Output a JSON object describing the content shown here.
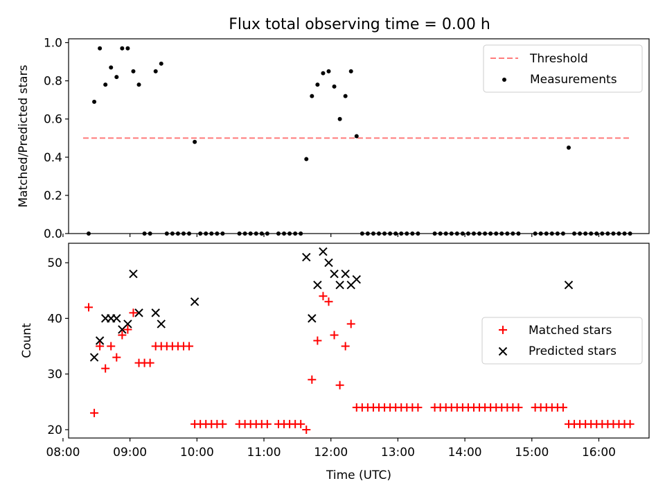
{
  "title": "Flux total observing time = 0.00 h",
  "chart_data": [
    {
      "type": "scatter",
      "title": "Flux total observing time = 0.00 h",
      "ylabel": "Matched/Predicted stars",
      "ylim": [
        0.0,
        1.02
      ],
      "yticks": [
        "0.0",
        "0.2",
        "0.4",
        "0.6",
        "0.8",
        "1.0"
      ],
      "legend_position": "upper right",
      "threshold": {
        "name": "Threshold",
        "value": 0.5,
        "x_range": [
          "08:18",
          "16:27"
        ],
        "color": "#ff7b7b",
        "style": "dashed"
      },
      "series": [
        {
          "name": "Measurements",
          "color": "#000000",
          "marker": "dot",
          "points": [
            [
              "08:23",
              0.0
            ],
            [
              "08:28",
              0.69
            ],
            [
              "08:33",
              0.97
            ],
            [
              "08:38",
              0.78
            ],
            [
              "08:43",
              0.87
            ],
            [
              "08:48",
              0.82
            ],
            [
              "08:53",
              0.97
            ],
            [
              "08:58",
              0.97
            ],
            [
              "09:03",
              0.85
            ],
            [
              "09:08",
              0.78
            ],
            [
              "09:13",
              0.0
            ],
            [
              "09:18",
              0.0
            ],
            [
              "09:23",
              0.85
            ],
            [
              "09:28",
              0.89
            ],
            [
              "09:33",
              0.0
            ],
            [
              "09:38",
              0.0
            ],
            [
              "09:43",
              0.0
            ],
            [
              "09:48",
              0.0
            ],
            [
              "09:53",
              0.0
            ],
            [
              "09:58",
              0.48
            ],
            [
              "10:03",
              0.0
            ],
            [
              "10:08",
              0.0
            ],
            [
              "10:13",
              0.0
            ],
            [
              "10:18",
              0.0
            ],
            [
              "10:23",
              0.0
            ],
            [
              "10:38",
              0.0
            ],
            [
              "10:43",
              0.0
            ],
            [
              "10:48",
              0.0
            ],
            [
              "10:53",
              0.0
            ],
            [
              "10:58",
              0.0
            ],
            [
              "11:03",
              0.0
            ],
            [
              "11:13",
              0.0
            ],
            [
              "11:18",
              0.0
            ],
            [
              "11:23",
              0.0
            ],
            [
              "11:28",
              0.0
            ],
            [
              "11:33",
              0.0
            ],
            [
              "11:38",
              0.39
            ],
            [
              "11:43",
              0.72
            ],
            [
              "11:48",
              0.78
            ],
            [
              "11:53",
              0.84
            ],
            [
              "11:58",
              0.85
            ],
            [
              "12:03",
              0.77
            ],
            [
              "12:08",
              0.6
            ],
            [
              "12:13",
              0.72
            ],
            [
              "12:18",
              0.85
            ],
            [
              "12:23",
              0.51
            ],
            [
              "12:28",
              0.0
            ],
            [
              "12:33",
              0.0
            ],
            [
              "12:38",
              0.0
            ],
            [
              "12:43",
              0.0
            ],
            [
              "12:48",
              0.0
            ],
            [
              "12:53",
              0.0
            ],
            [
              "12:58",
              0.0
            ],
            [
              "13:03",
              0.0
            ],
            [
              "13:08",
              0.0
            ],
            [
              "13:13",
              0.0
            ],
            [
              "13:18",
              0.0
            ],
            [
              "13:33",
              0.0
            ],
            [
              "13:38",
              0.0
            ],
            [
              "13:43",
              0.0
            ],
            [
              "13:48",
              0.0
            ],
            [
              "13:53",
              0.0
            ],
            [
              "13:58",
              0.0
            ],
            [
              "14:03",
              0.0
            ],
            [
              "14:08",
              0.0
            ],
            [
              "14:13",
              0.0
            ],
            [
              "14:18",
              0.0
            ],
            [
              "14:23",
              0.0
            ],
            [
              "14:28",
              0.0
            ],
            [
              "14:33",
              0.0
            ],
            [
              "14:38",
              0.0
            ],
            [
              "14:43",
              0.0
            ],
            [
              "14:48",
              0.0
            ],
            [
              "15:03",
              0.0
            ],
            [
              "15:08",
              0.0
            ],
            [
              "15:13",
              0.0
            ],
            [
              "15:18",
              0.0
            ],
            [
              "15:23",
              0.0
            ],
            [
              "15:28",
              0.0
            ],
            [
              "15:33",
              0.45
            ],
            [
              "15:38",
              0.0
            ],
            [
              "15:43",
              0.0
            ],
            [
              "15:48",
              0.0
            ],
            [
              "15:53",
              0.0
            ],
            [
              "15:58",
              0.0
            ],
            [
              "16:03",
              0.0
            ],
            [
              "16:08",
              0.0
            ],
            [
              "16:13",
              0.0
            ],
            [
              "16:18",
              0.0
            ],
            [
              "16:23",
              0.0
            ],
            [
              "16:28",
              0.0
            ]
          ]
        }
      ]
    },
    {
      "type": "scatter",
      "xlabel": "Time (UTC)",
      "ylabel": "Count",
      "ylim": [
        18.5,
        53.5
      ],
      "yticks": [
        "20",
        "30",
        "40",
        "50"
      ],
      "xlim": [
        "08:05",
        "16:45"
      ],
      "xticks": [
        "08:00",
        "09:00",
        "10:00",
        "11:00",
        "12:00",
        "13:00",
        "14:00",
        "15:00",
        "16:00"
      ],
      "legend_position": "center right",
      "series": [
        {
          "name": "Matched stars",
          "color": "#ff0000",
          "marker": "plus",
          "points": [
            [
              "08:23",
              42
            ],
            [
              "08:28",
              23
            ],
            [
              "08:33",
              35
            ],
            [
              "08:38",
              31
            ],
            [
              "08:43",
              35
            ],
            [
              "08:48",
              33
            ],
            [
              "08:53",
              37
            ],
            [
              "08:58",
              38
            ],
            [
              "09:03",
              41
            ],
            [
              "09:08",
              32
            ],
            [
              "09:13",
              32
            ],
            [
              "09:18",
              32
            ],
            [
              "09:23",
              35
            ],
            [
              "09:28",
              35
            ],
            [
              "09:33",
              35
            ],
            [
              "09:38",
              35
            ],
            [
              "09:43",
              35
            ],
            [
              "09:48",
              35
            ],
            [
              "09:53",
              35
            ],
            [
              "09:58",
              21
            ],
            [
              "10:03",
              21
            ],
            [
              "10:08",
              21
            ],
            [
              "10:13",
              21
            ],
            [
              "10:18",
              21
            ],
            [
              "10:23",
              21
            ],
            [
              "10:38",
              21
            ],
            [
              "10:43",
              21
            ],
            [
              "10:48",
              21
            ],
            [
              "10:53",
              21
            ],
            [
              "10:58",
              21
            ],
            [
              "11:03",
              21
            ],
            [
              "11:13",
              21
            ],
            [
              "11:18",
              21
            ],
            [
              "11:23",
              21
            ],
            [
              "11:28",
              21
            ],
            [
              "11:33",
              21
            ],
            [
              "11:38",
              20
            ],
            [
              "11:43",
              29
            ],
            [
              "11:48",
              36
            ],
            [
              "11:53",
              44
            ],
            [
              "11:58",
              43
            ],
            [
              "12:03",
              37
            ],
            [
              "12:08",
              28
            ],
            [
              "12:13",
              35
            ],
            [
              "12:18",
              39
            ],
            [
              "12:23",
              24
            ],
            [
              "12:28",
              24
            ],
            [
              "12:33",
              24
            ],
            [
              "12:38",
              24
            ],
            [
              "12:43",
              24
            ],
            [
              "12:48",
              24
            ],
            [
              "12:53",
              24
            ],
            [
              "12:58",
              24
            ],
            [
              "13:03",
              24
            ],
            [
              "13:08",
              24
            ],
            [
              "13:13",
              24
            ],
            [
              "13:18",
              24
            ],
            [
              "13:33",
              24
            ],
            [
              "13:38",
              24
            ],
            [
              "13:43",
              24
            ],
            [
              "13:48",
              24
            ],
            [
              "13:53",
              24
            ],
            [
              "13:58",
              24
            ],
            [
              "14:03",
              24
            ],
            [
              "14:08",
              24
            ],
            [
              "14:13",
              24
            ],
            [
              "14:18",
              24
            ],
            [
              "14:23",
              24
            ],
            [
              "14:28",
              24
            ],
            [
              "14:33",
              24
            ],
            [
              "14:38",
              24
            ],
            [
              "14:43",
              24
            ],
            [
              "14:48",
              24
            ],
            [
              "15:03",
              24
            ],
            [
              "15:08",
              24
            ],
            [
              "15:13",
              24
            ],
            [
              "15:18",
              24
            ],
            [
              "15:23",
              24
            ],
            [
              "15:28",
              24
            ],
            [
              "15:33",
              21
            ],
            [
              "15:38",
              21
            ],
            [
              "15:43",
              21
            ],
            [
              "15:48",
              21
            ],
            [
              "15:53",
              21
            ],
            [
              "15:58",
              21
            ],
            [
              "16:03",
              21
            ],
            [
              "16:08",
              21
            ],
            [
              "16:13",
              21
            ],
            [
              "16:18",
              21
            ],
            [
              "16:23",
              21
            ],
            [
              "16:28",
              21
            ]
          ]
        },
        {
          "name": "Predicted stars",
          "color": "#000000",
          "marker": "x",
          "points": [
            [
              "08:28",
              33
            ],
            [
              "08:33",
              36
            ],
            [
              "08:38",
              40
            ],
            [
              "08:43",
              40
            ],
            [
              "08:48",
              40
            ],
            [
              "08:53",
              38
            ],
            [
              "08:58",
              39
            ],
            [
              "09:03",
              48
            ],
            [
              "09:08",
              41
            ],
            [
              "09:23",
              41
            ],
            [
              "09:28",
              39
            ],
            [
              "09:58",
              43
            ],
            [
              "11:38",
              51
            ],
            [
              "11:43",
              40
            ],
            [
              "11:48",
              46
            ],
            [
              "11:53",
              52
            ],
            [
              "11:58",
              50
            ],
            [
              "12:03",
              48
            ],
            [
              "12:08",
              46
            ],
            [
              "12:13",
              48
            ],
            [
              "12:18",
              46
            ],
            [
              "12:23",
              47
            ],
            [
              "15:33",
              46
            ]
          ]
        }
      ]
    }
  ]
}
